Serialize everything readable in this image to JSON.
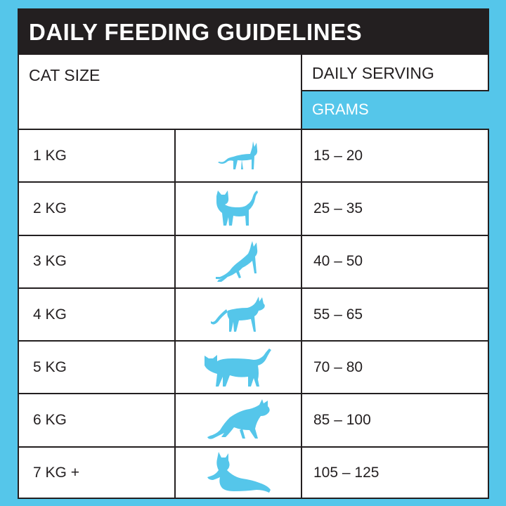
{
  "title": "DAILY FEEDING GUIDELINES",
  "headers": {
    "cat_size": "CAT SIZE",
    "daily_serving": "DAILY SERVING",
    "unit": "GRAMS"
  },
  "colors": {
    "accent": "#55c6ea",
    "dark": "#231f20"
  },
  "rows": [
    {
      "size": "1 KG",
      "serving": "15 – 20",
      "icon": "small-cat-standing-icon"
    },
    {
      "size": "2 KG",
      "serving": "25 – 35",
      "icon": "cat-tail-up-icon"
    },
    {
      "size": "3 KG",
      "serving": "40 – 50",
      "icon": "cat-sitting-icon"
    },
    {
      "size": "4 KG",
      "serving": "55 – 65",
      "icon": "cat-walking-icon"
    },
    {
      "size": "5 KG",
      "serving": "70 – 80",
      "icon": "large-cat-walking-icon"
    },
    {
      "size": "6 KG",
      "serving": "85 – 100",
      "icon": "cat-stalking-icon"
    },
    {
      "size": "7 KG +",
      "serving": "105 – 125",
      "icon": "cat-lying-icon"
    }
  ]
}
